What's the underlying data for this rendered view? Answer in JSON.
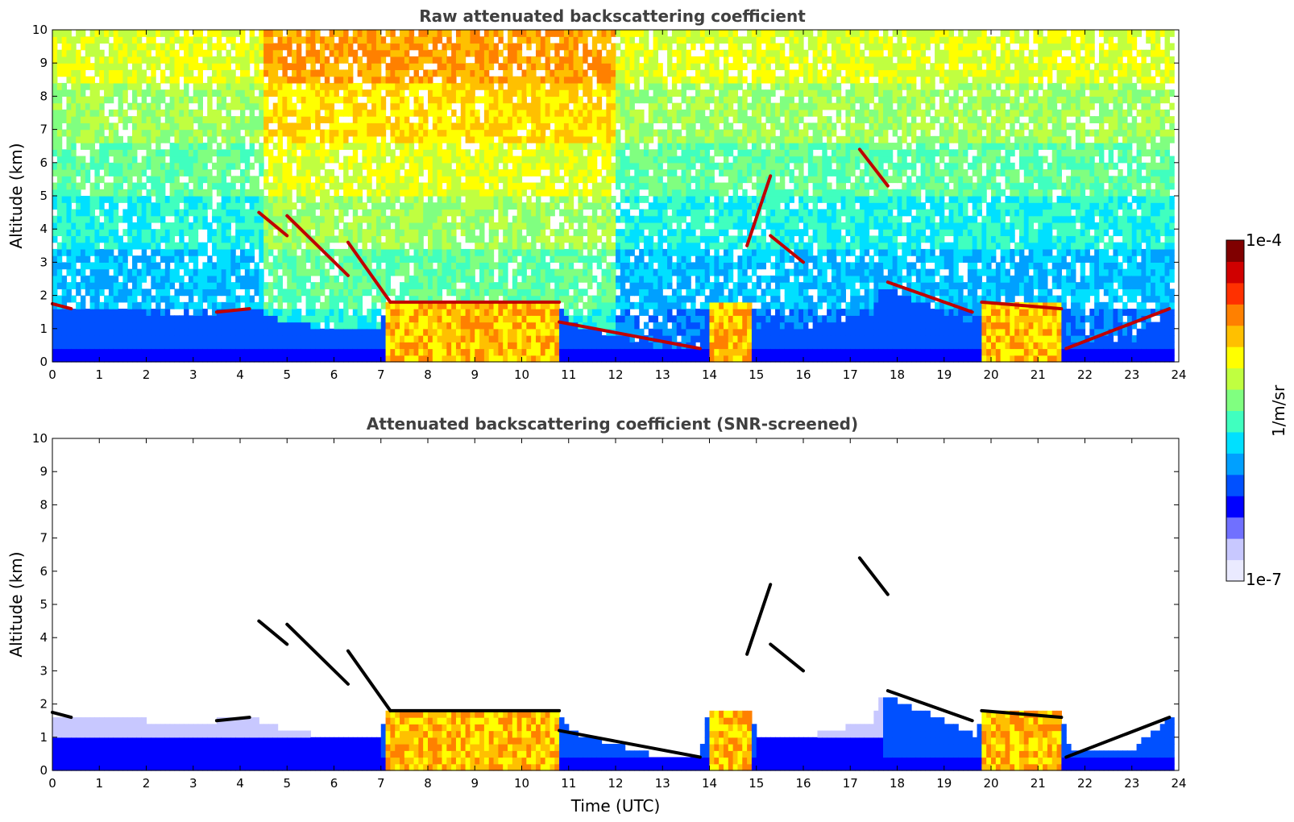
{
  "chart_data": [
    {
      "type": "heatmap",
      "title": "Raw attenuated backscattering coefficient",
      "xlabel": "",
      "ylabel": "Altitude (km)",
      "xlim": [
        0,
        24
      ],
      "ylim": [
        0,
        10
      ],
      "xticks": [
        "0",
        "1",
        "2",
        "3",
        "4",
        "5",
        "6",
        "7",
        "8",
        "9",
        "10",
        "11",
        "12",
        "13",
        "14",
        "15",
        "16",
        "17",
        "18",
        "19",
        "20",
        "21",
        "22",
        "23",
        "24"
      ],
      "yticks": [
        "0",
        "1",
        "2",
        "3",
        "4",
        "5",
        "6",
        "7",
        "8",
        "9",
        "10"
      ],
      "noise": true,
      "grid": false,
      "boundary_layer": [
        {
          "t": 0.0,
          "z": 1.7
        },
        {
          "t": 1.0,
          "z": 1.55
        },
        {
          "t": 2.0,
          "z": 1.5
        },
        {
          "t": 3.0,
          "z": 1.45
        },
        {
          "t": 3.5,
          "z": 1.5
        },
        {
          "t": 4.2,
          "z": 1.6
        },
        {
          "t": 5.0,
          "z": 1.2
        },
        {
          "t": 6.0,
          "z": 1.0
        },
        {
          "t": 7.0,
          "z": 1.0
        },
        {
          "t": 7.1,
          "z": 1.9
        },
        {
          "t": 9.0,
          "z": 1.85
        },
        {
          "t": 10.7,
          "z": 1.85
        },
        {
          "t": 11.0,
          "z": 1.2
        },
        {
          "t": 12.0,
          "z": 0.8
        },
        {
          "t": 13.0,
          "z": 0.4
        },
        {
          "t": 13.8,
          "z": 0.5
        },
        {
          "t": 14.0,
          "z": 1.9
        },
        {
          "t": 14.9,
          "z": 1.8
        },
        {
          "t": 15.0,
          "z": 0.9
        },
        {
          "t": 16.0,
          "z": 1.0
        },
        {
          "t": 17.5,
          "z": 1.5
        },
        {
          "t": 17.7,
          "z": 2.3
        },
        {
          "t": 19.0,
          "z": 1.5
        },
        {
          "t": 19.7,
          "z": 1.0
        },
        {
          "t": 19.8,
          "z": 1.9
        },
        {
          "t": 21.5,
          "z": 1.8
        },
        {
          "t": 21.7,
          "z": 0.5
        },
        {
          "t": 23.0,
          "z": 0.6
        },
        {
          "t": 23.8,
          "z": 1.6
        }
      ],
      "cloud_segments": [
        {
          "t0": 0.0,
          "t1": 0.4,
          "z0": 1.75,
          "z1": 1.6
        },
        {
          "t0": 3.5,
          "t1": 4.2,
          "z0": 1.5,
          "z1": 1.6
        },
        {
          "t0": 4.4,
          "t1": 5.0,
          "z0": 4.5,
          "z1": 3.8
        },
        {
          "t0": 5.0,
          "t1": 6.3,
          "z0": 4.4,
          "z1": 2.6
        },
        {
          "t0": 6.3,
          "t1": 7.2,
          "z0": 3.6,
          "z1": 1.8
        },
        {
          "t0": 7.2,
          "t1": 10.8,
          "z0": 1.8,
          "z1": 1.8
        },
        {
          "t0": 10.8,
          "t1": 13.8,
          "z0": 1.2,
          "z1": 0.4
        },
        {
          "t0": 14.8,
          "t1": 15.3,
          "z0": 3.5,
          "z1": 5.6
        },
        {
          "t0": 15.3,
          "t1": 16.0,
          "z0": 3.8,
          "z1": 3.0
        },
        {
          "t0": 17.2,
          "t1": 17.8,
          "z0": 6.4,
          "z1": 5.3
        },
        {
          "t0": 17.8,
          "t1": 19.6,
          "z0": 2.4,
          "z1": 1.5
        },
        {
          "t0": 19.8,
          "t1": 21.5,
          "z0": 1.8,
          "z1": 1.6
        },
        {
          "t0": 21.6,
          "t1": 23.8,
          "z0": 0.4,
          "z1": 1.6
        }
      ]
    },
    {
      "type": "heatmap",
      "title": "Attenuated backscattering coefficient (SNR-screened)",
      "xlabel": "Time (UTC)",
      "ylabel": "Altitude (km)",
      "xlim": [
        0,
        24
      ],
      "ylim": [
        0,
        10
      ],
      "xticks": [
        "0",
        "1",
        "2",
        "3",
        "4",
        "5",
        "6",
        "7",
        "8",
        "9",
        "10",
        "11",
        "12",
        "13",
        "14",
        "15",
        "16",
        "17",
        "18",
        "19",
        "20",
        "21",
        "22",
        "23",
        "24"
      ],
      "yticks": [
        "0",
        "1",
        "2",
        "3",
        "4",
        "5",
        "6",
        "7",
        "8",
        "9",
        "10"
      ],
      "noise": false,
      "grid": false
    }
  ],
  "colorbar": {
    "label": "1/m/sr",
    "max_label": "1e-4",
    "min_label": "1e-7",
    "scale": "log",
    "range": [
      1e-07,
      0.0001
    ],
    "colormap": [
      "#eaeaff",
      "#c8c8ff",
      "#7070ff",
      "#0000ff",
      "#0050ff",
      "#00a0ff",
      "#00e0ff",
      "#40ffbf",
      "#80ff80",
      "#c0ff40",
      "#ffff00",
      "#ffc000",
      "#ff8000",
      "#ff3000",
      "#d00000",
      "#800000"
    ]
  }
}
